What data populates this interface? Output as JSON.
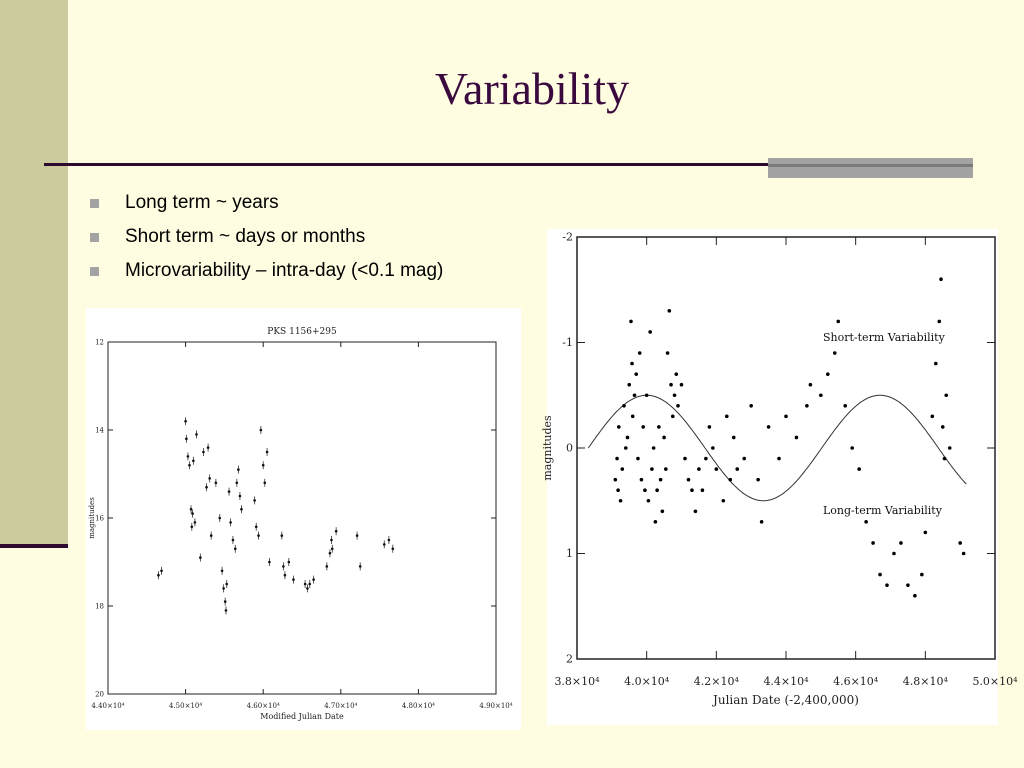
{
  "slide": {
    "title": "Variability",
    "bullets": [
      "Long term ~ years",
      "Short term ~ days or months",
      "Microvariability – intra-day (<0.1 mag)"
    ],
    "colors": {
      "background": "#fffde1",
      "sidebar": "#cbcb9e",
      "title": "#3a0a3e",
      "rule": "#2e0a2e",
      "accent_grey": "#a3a3a3"
    }
  },
  "chart_data": [
    {
      "type": "scatter",
      "title": "PKS 1156+295",
      "xlabel": "Modified Julian Date",
      "ylabel": "magnitudes",
      "xlim": [
        44000,
        49000
      ],
      "ylim": [
        20,
        12
      ],
      "y_inverted": true,
      "x_ticks": [
        44000,
        45000,
        46000,
        47000,
        48000,
        49000
      ],
      "x_tick_labels": [
        "4.40×10⁴",
        "4.50×10⁴",
        "4.60×10⁴",
        "4.70×10⁴",
        "4.80×10⁴",
        "4.90×10⁴"
      ],
      "y_ticks": [
        12,
        14,
        16,
        18,
        20
      ],
      "y_tick_labels": [
        "12",
        "14",
        "16",
        "18",
        "20"
      ],
      "error_bars": true,
      "points": [
        [
          44650,
          17.3
        ],
        [
          44690,
          17.2
        ],
        [
          45000,
          13.8
        ],
        [
          45010,
          14.2
        ],
        [
          45030,
          14.6
        ],
        [
          45050,
          14.8
        ],
        [
          45070,
          15.8
        ],
        [
          45080,
          16.2
        ],
        [
          45090,
          15.9
        ],
        [
          45100,
          14.7
        ],
        [
          45120,
          16.1
        ],
        [
          45140,
          14.1
        ],
        [
          45190,
          16.9
        ],
        [
          45230,
          14.5
        ],
        [
          45270,
          15.3
        ],
        [
          45290,
          14.4
        ],
        [
          45310,
          15.1
        ],
        [
          45330,
          16.4
        ],
        [
          45390,
          15.2
        ],
        [
          45440,
          16.0
        ],
        [
          45470,
          17.2
        ],
        [
          45490,
          17.6
        ],
        [
          45510,
          17.9
        ],
        [
          45520,
          18.1
        ],
        [
          45530,
          17.5
        ],
        [
          45560,
          15.4
        ],
        [
          45580,
          16.1
        ],
        [
          45610,
          16.5
        ],
        [
          45640,
          16.7
        ],
        [
          45660,
          15.2
        ],
        [
          45680,
          14.9
        ],
        [
          45700,
          15.5
        ],
        [
          45720,
          15.8
        ],
        [
          45890,
          15.6
        ],
        [
          45910,
          16.2
        ],
        [
          45940,
          16.4
        ],
        [
          45970,
          14.0
        ],
        [
          46000,
          14.8
        ],
        [
          46020,
          15.2
        ],
        [
          46050,
          14.5
        ],
        [
          46080,
          17.0
        ],
        [
          46240,
          16.4
        ],
        [
          46260,
          17.1
        ],
        [
          46280,
          17.3
        ],
        [
          46330,
          17.0
        ],
        [
          46390,
          17.4
        ],
        [
          46540,
          17.5
        ],
        [
          46570,
          17.6
        ],
        [
          46600,
          17.5
        ],
        [
          46650,
          17.4
        ],
        [
          46820,
          17.1
        ],
        [
          46860,
          16.8
        ],
        [
          46880,
          16.5
        ],
        [
          46890,
          16.7
        ],
        [
          46940,
          16.3
        ],
        [
          47210,
          16.4
        ],
        [
          47250,
          17.1
        ],
        [
          47560,
          16.6
        ],
        [
          47620,
          16.5
        ],
        [
          47670,
          16.7
        ]
      ]
    },
    {
      "type": "scatter",
      "title": "",
      "xlabel": "Julian Date (-2,400,000)",
      "ylabel": "magnitudes",
      "xlim": [
        38000,
        50000
      ],
      "ylim": [
        2,
        -2
      ],
      "y_inverted": true,
      "x_ticks": [
        38000,
        40000,
        42000,
        44000,
        46000,
        48000,
        50000
      ],
      "x_tick_labels": [
        "3.8×10⁴",
        "4.0×10⁴",
        "4.2×10⁴",
        "4.4×10⁴",
        "4.6×10⁴",
        "4.8×10⁴",
        "5.0×10⁴"
      ],
      "y_ticks": [
        -2,
        -1,
        0,
        1,
        2
      ],
      "y_tick_labels": [
        "-2",
        "-1",
        "0",
        "1",
        "2"
      ],
      "annotations": [
        "Short-term Variability",
        "Long-term Variability"
      ],
      "model_curve": {
        "type": "sine",
        "mean_mag": 0,
        "amplitude": 0.5,
        "period": 6700,
        "max_brightness_at": 40000
      },
      "points": [
        [
          39100,
          0.3
        ],
        [
          39150,
          0.1
        ],
        [
          39180,
          0.4
        ],
        [
          39200,
          -0.2
        ],
        [
          39250,
          0.5
        ],
        [
          39300,
          0.2
        ],
        [
          39350,
          -0.4
        ],
        [
          39400,
          0.0
        ],
        [
          39450,
          -0.1
        ],
        [
          39500,
          -0.6
        ],
        [
          39550,
          -1.2
        ],
        [
          39580,
          -0.8
        ],
        [
          39600,
          -0.3
        ],
        [
          39650,
          -0.5
        ],
        [
          39700,
          -0.7
        ],
        [
          39750,
          0.1
        ],
        [
          39800,
          -0.9
        ],
        [
          39850,
          0.3
        ],
        [
          39900,
          -0.2
        ],
        [
          39950,
          0.4
        ],
        [
          40000,
          -0.5
        ],
        [
          40050,
          0.5
        ],
        [
          40100,
          -1.1
        ],
        [
          40150,
          0.2
        ],
        [
          40200,
          0.0
        ],
        [
          40250,
          0.7
        ],
        [
          40300,
          0.4
        ],
        [
          40350,
          -0.2
        ],
        [
          40400,
          0.3
        ],
        [
          40450,
          0.6
        ],
        [
          40500,
          -0.1
        ],
        [
          40550,
          0.2
        ],
        [
          40600,
          -0.9
        ],
        [
          40650,
          -1.3
        ],
        [
          40700,
          -0.6
        ],
        [
          40750,
          -0.3
        ],
        [
          40800,
          -0.5
        ],
        [
          40850,
          -0.7
        ],
        [
          40900,
          -0.4
        ],
        [
          41000,
          -0.6
        ],
        [
          41100,
          0.1
        ],
        [
          41200,
          0.3
        ],
        [
          41300,
          0.4
        ],
        [
          41400,
          0.6
        ],
        [
          41500,
          0.2
        ],
        [
          41600,
          0.4
        ],
        [
          41700,
          0.1
        ],
        [
          41800,
          -0.2
        ],
        [
          41900,
          0.0
        ],
        [
          42000,
          0.2
        ],
        [
          42200,
          0.5
        ],
        [
          42300,
          -0.3
        ],
        [
          42400,
          0.3
        ],
        [
          42500,
          -0.1
        ],
        [
          42600,
          0.2
        ],
        [
          42800,
          0.1
        ],
        [
          43000,
          -0.4
        ],
        [
          43200,
          0.3
        ],
        [
          43300,
          0.7
        ],
        [
          43500,
          -0.2
        ],
        [
          43800,
          0.1
        ],
        [
          44000,
          -0.3
        ],
        [
          44300,
          -0.1
        ],
        [
          44600,
          -0.4
        ],
        [
          44700,
          -0.6
        ],
        [
          45000,
          -0.5
        ],
        [
          45200,
          -0.7
        ],
        [
          45400,
          -0.9
        ],
        [
          45500,
          -1.2
        ],
        [
          45700,
          -0.4
        ],
        [
          45900,
          0.0
        ],
        [
          46100,
          0.2
        ],
        [
          46300,
          0.7
        ],
        [
          46500,
          0.9
        ],
        [
          46700,
          1.2
        ],
        [
          46900,
          1.3
        ],
        [
          47100,
          1.0
        ],
        [
          47300,
          0.9
        ],
        [
          47500,
          1.3
        ],
        [
          47700,
          1.4
        ],
        [
          47900,
          1.2
        ],
        [
          48000,
          0.8
        ],
        [
          48200,
          -0.3
        ],
        [
          48300,
          -0.8
        ],
        [
          48400,
          -1.2
        ],
        [
          48450,
          -1.6
        ],
        [
          48500,
          -0.2
        ],
        [
          48550,
          0.1
        ],
        [
          48600,
          -0.5
        ],
        [
          48700,
          0.0
        ],
        [
          49000,
          0.9
        ],
        [
          49100,
          1.0
        ]
      ]
    }
  ]
}
